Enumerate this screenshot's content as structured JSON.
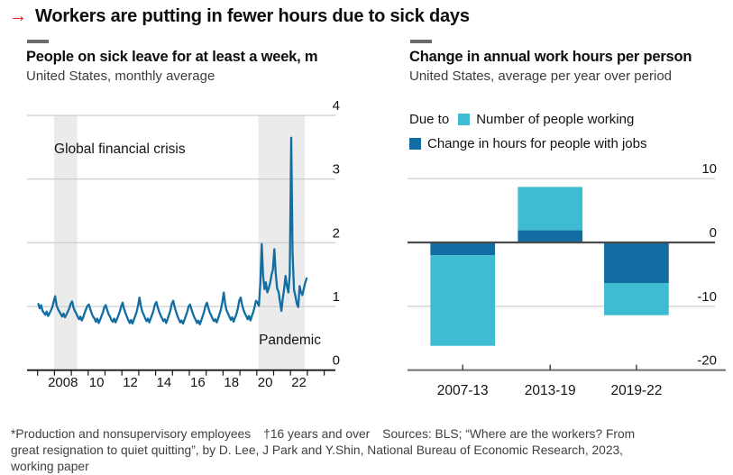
{
  "header": {
    "arrow": "→",
    "title": "Workers are putting in fewer hours due to sick days"
  },
  "left_panel": {
    "title": "People on sick leave for at least a week, m",
    "subtitle": "United States, monthly average"
  },
  "right_panel": {
    "title": "Change in annual work hours per person",
    "subtitle": "United States, average per year over period",
    "legend_prefix": "Due to",
    "legend": [
      {
        "label": "Number of people working",
        "color": "#3ebcd2"
      },
      {
        "label": "Change in hours for people with jobs",
        "color": "#116da2"
      }
    ]
  },
  "footnote": {
    "note1": "*Production and nonsupervisory employees",
    "note2": "†16 years and over",
    "sources": "Sources: BLS; “Where are the workers? From great resignation to quiet quitting”, by D. Lee, J Park and Y.Shin, National Bureau of Economic Research, 2023, working paper"
  },
  "colors": {
    "red": "#e3120b",
    "blue": "#116da2",
    "cyan": "#3ebcd2",
    "band": "#ebebeb",
    "grid": "#c8c8c8",
    "axis_dark": "#161616",
    "zero_line": "#4a4a4a"
  },
  "chart_data": [
    {
      "type": "line",
      "title": "People on sick leave for at least a week, m",
      "subtitle": "United States, monthly average",
      "line_color": "#116da2",
      "x_start_year": 2007,
      "frequency": "monthly",
      "ylim": [
        0,
        4
      ],
      "yticks": [
        "0",
        "1",
        "2",
        "3",
        "4"
      ],
      "xticks": [
        {
          "year": 2008,
          "label": "2008"
        },
        {
          "year": 2010,
          "label": "10"
        },
        {
          "year": 2012,
          "label": "12"
        },
        {
          "year": 2014,
          "label": "14"
        },
        {
          "year": 2016,
          "label": "16"
        },
        {
          "year": 2018,
          "label": "18"
        },
        {
          "year": 2020,
          "label": "20"
        },
        {
          "year": 2022,
          "label": "22"
        }
      ],
      "annotations": [
        {
          "label": "Global financial crisis",
          "from": 2007.98,
          "to": 2009.35,
          "label_align": "left"
        },
        {
          "label": "Pandemic",
          "from": 2020.1,
          "to": 2022.85,
          "label_align": "right"
        }
      ],
      "values": [
        1.04,
        0.97,
        1.02,
        0.93,
        0.9,
        0.87,
        0.92,
        0.85,
        0.89,
        0.94,
        0.99,
        1.08,
        1.16,
        1.02,
        0.96,
        0.92,
        0.88,
        0.84,
        0.89,
        0.83,
        0.87,
        0.92,
        0.97,
        1.04,
        1.08,
        0.99,
        0.93,
        0.89,
        0.84,
        0.8,
        0.84,
        0.78,
        0.83,
        0.9,
        0.96,
        1.01,
        1.03,
        0.96,
        0.89,
        0.84,
        0.81,
        0.76,
        0.81,
        0.74,
        0.79,
        0.85,
        0.91,
        0.99,
        1.02,
        0.95,
        0.88,
        0.84,
        0.79,
        0.76,
        0.81,
        0.75,
        0.8,
        0.86,
        0.92,
        1.0,
        1.06,
        0.97,
        0.9,
        0.84,
        0.79,
        0.74,
        0.79,
        0.73,
        0.79,
        0.85,
        0.92,
        1.01,
        1.14,
        1.01,
        0.92,
        0.87,
        0.82,
        0.77,
        0.81,
        0.75,
        0.81,
        0.87,
        0.94,
        1.03,
        1.07,
        0.99,
        0.92,
        0.86,
        0.82,
        0.77,
        0.8,
        0.74,
        0.8,
        0.87,
        0.94,
        1.04,
        1.09,
        1.0,
        0.92,
        0.85,
        0.8,
        0.75,
        0.78,
        0.73,
        0.79,
        0.85,
        0.92,
        1.0,
        1.03,
        0.96,
        0.89,
        0.83,
        0.79,
        0.74,
        0.78,
        0.72,
        0.78,
        0.85,
        0.92,
        1.01,
        1.06,
        0.98,
        0.91,
        0.86,
        0.81,
        0.77,
        0.8,
        0.75,
        0.81,
        0.88,
        0.96,
        1.07,
        1.22,
        1.04,
        0.94,
        0.89,
        0.84,
        0.79,
        0.83,
        0.76,
        0.82,
        0.88,
        0.97,
        1.09,
        1.14,
        1.03,
        0.95,
        0.89,
        0.85,
        0.8,
        0.85,
        0.78,
        0.85,
        0.91,
        1.0,
        1.09,
        1.06,
        1.01,
        1.35,
        1.98,
        1.48,
        1.27,
        1.38,
        1.22,
        1.28,
        1.37,
        1.5,
        1.58,
        1.9,
        1.52,
        1.28,
        1.23,
        1.08,
        0.93,
        1.12,
        1.28,
        1.48,
        1.32,
        1.22,
        1.52,
        3.65,
        1.85,
        1.26,
        1.16,
        1.04,
        0.99,
        1.32,
        1.22,
        1.18,
        1.28,
        1.38,
        1.44
      ]
    },
    {
      "type": "bar",
      "title": "Change in annual work hours per person",
      "subtitle": "United States, average per year over period",
      "categories": [
        "2007-13",
        "2013-19",
        "2019-22"
      ],
      "series": [
        {
          "name": "Number of people working",
          "color": "#3ebcd2",
          "values": [
            -14.2,
            6.8,
            -5.0
          ]
        },
        {
          "name": "Change in hours for people with jobs",
          "color": "#116da2",
          "values": [
            -2.0,
            1.9,
            -6.4
          ]
        }
      ],
      "stacked": true,
      "ylim": [
        -20,
        10
      ],
      "yticks": [
        "10",
        "0",
        "-10",
        "-20"
      ],
      "ytick_values": [
        10,
        0,
        -10,
        -20
      ]
    }
  ]
}
